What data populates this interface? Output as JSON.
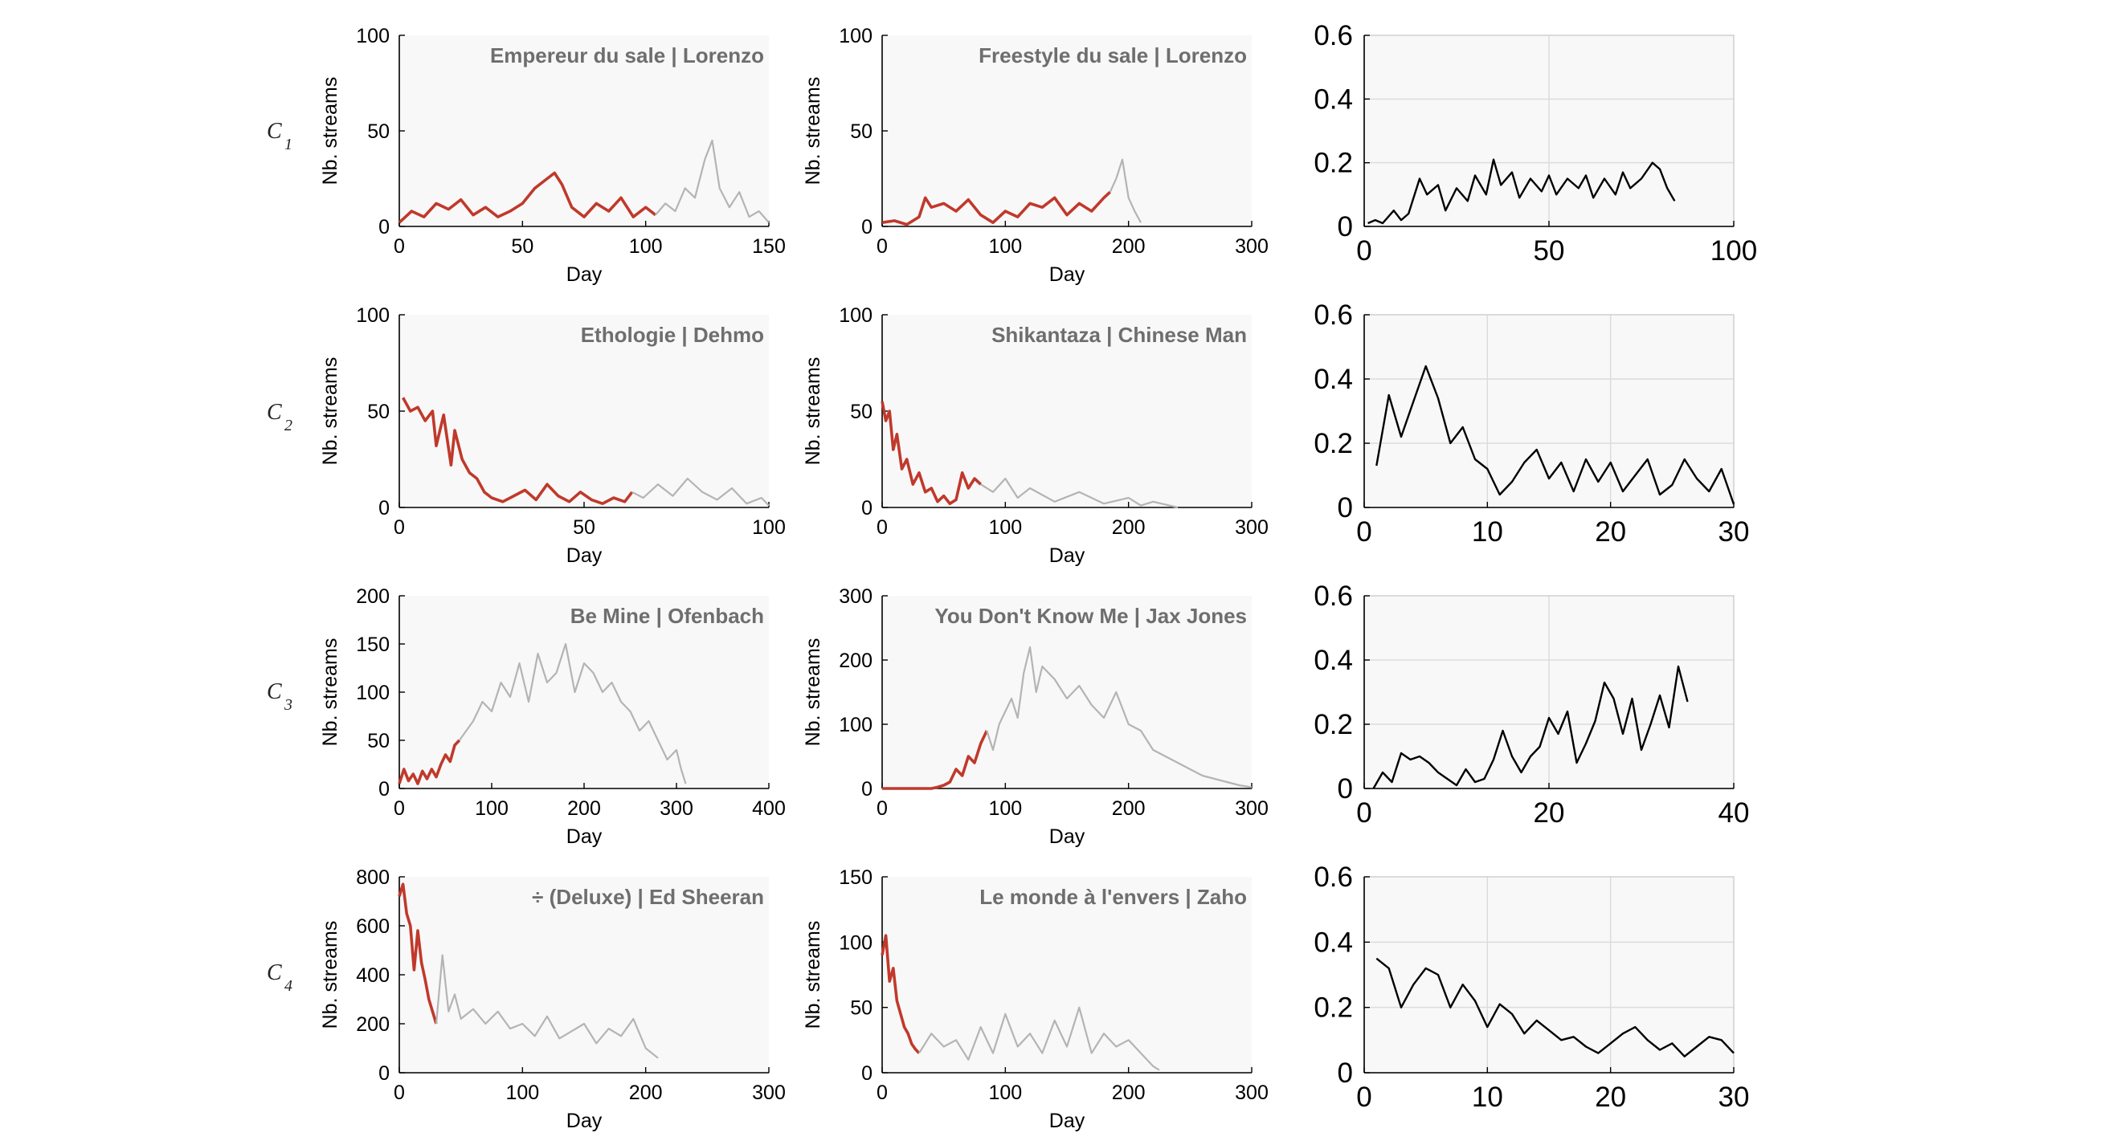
{
  "colors": {
    "early": "#c0392b",
    "late": "#b4b4b4",
    "curve": "#000000",
    "panel_bg": "#f8f8f8"
  },
  "labels": {
    "xlabel": "Day",
    "ylabel": "Nb. streams",
    "row_letter": "C"
  },
  "rows": [
    {
      "sub": "1"
    },
    {
      "sub": "2"
    },
    {
      "sub": "3"
    },
    {
      "sub": "4"
    }
  ],
  "chart_data": [
    {
      "type": "line",
      "row": 1,
      "title": "Empereur du sale | Lorenzo",
      "xlabel": "Day",
      "ylabel": "Nb. streams",
      "xlim": [
        0,
        150
      ],
      "ylim": [
        0,
        100
      ],
      "xticks": [
        0,
        50,
        100,
        150
      ],
      "yticks": [
        0,
        50,
        100
      ],
      "series": [
        {
          "x": [
            0,
            5,
            10,
            15,
            20,
            25,
            30,
            35,
            40,
            45,
            50,
            55,
            60,
            63,
            66,
            70,
            75,
            80,
            85,
            90,
            95,
            100,
            104
          ],
          "y": [
            2,
            8,
            5,
            12,
            9,
            14,
            6,
            10,
            5,
            8,
            12,
            20,
            25,
            28,
            22,
            10,
            5,
            12,
            8,
            15,
            5,
            10,
            6
          ]
        },
        {
          "x": [
            104,
            108,
            112,
            116,
            120,
            124,
            127,
            130,
            134,
            138,
            142,
            146,
            150
          ],
          "y": [
            6,
            12,
            8,
            20,
            15,
            35,
            45,
            20,
            10,
            18,
            5,
            8,
            2
          ]
        }
      ]
    },
    {
      "type": "line",
      "row": 1,
      "title": "Freestyle du sale | Lorenzo",
      "xlabel": "Day",
      "ylabel": "Nb. streams",
      "xlim": [
        0,
        300
      ],
      "ylim": [
        0,
        100
      ],
      "xticks": [
        0,
        100,
        200,
        300
      ],
      "yticks": [
        0,
        50,
        100
      ],
      "series": [
        {
          "x": [
            0,
            10,
            20,
            30,
            35,
            40,
            50,
            60,
            70,
            80,
            90,
            100,
            110,
            120,
            130,
            140,
            150,
            160,
            170,
            180,
            185
          ],
          "y": [
            2,
            3,
            1,
            5,
            15,
            10,
            12,
            8,
            14,
            6,
            2,
            8,
            5,
            12,
            10,
            15,
            6,
            12,
            8,
            15,
            18
          ]
        },
        {
          "x": [
            185,
            190,
            195,
            200,
            205,
            210
          ],
          "y": [
            18,
            25,
            35,
            15,
            8,
            2
          ]
        }
      ]
    },
    {
      "type": "line",
      "row": 1,
      "xlim": [
        0,
        100
      ],
      "ylim": [
        0,
        0.6
      ],
      "xticks": [
        0,
        50,
        100
      ],
      "yticks": [
        0,
        0.2,
        0.4,
        0.6
      ],
      "grid": true,
      "series": [
        {
          "x": [
            1,
            3,
            5,
            8,
            10,
            12,
            15,
            17,
            20,
            22,
            25,
            28,
            30,
            33,
            35,
            37,
            40,
            42,
            45,
            48,
            50,
            52,
            55,
            58,
            60,
            62,
            65,
            68,
            70,
            72,
            75,
            78,
            80,
            82,
            84
          ],
          "y": [
            0.01,
            0.02,
            0.01,
            0.05,
            0.02,
            0.04,
            0.15,
            0.1,
            0.13,
            0.05,
            0.12,
            0.08,
            0.16,
            0.1,
            0.21,
            0.13,
            0.17,
            0.09,
            0.15,
            0.11,
            0.16,
            0.1,
            0.15,
            0.12,
            0.16,
            0.09,
            0.15,
            0.1,
            0.17,
            0.12,
            0.15,
            0.2,
            0.18,
            0.12,
            0.08
          ]
        }
      ]
    },
    {
      "type": "line",
      "row": 2,
      "title": "Ethologie | Dehmo",
      "xlabel": "Day",
      "ylabel": "Nb. streams",
      "xlim": [
        0,
        100
      ],
      "ylim": [
        0,
        100
      ],
      "xticks": [
        0,
        50,
        100
      ],
      "yticks": [
        0,
        50,
        100
      ],
      "series": [
        {
          "x": [
            1,
            3,
            5,
            7,
            9,
            10,
            12,
            14,
            15,
            17,
            19,
            21,
            23,
            25,
            28,
            31,
            34,
            37,
            40,
            43,
            46,
            49,
            52,
            55,
            58,
            61,
            63
          ],
          "y": [
            57,
            50,
            52,
            45,
            50,
            32,
            48,
            22,
            40,
            25,
            18,
            15,
            8,
            5,
            3,
            6,
            9,
            4,
            12,
            6,
            3,
            8,
            4,
            2,
            5,
            3,
            8
          ]
        },
        {
          "x": [
            63,
            66,
            70,
            74,
            78,
            82,
            86,
            90,
            94,
            98,
            100
          ],
          "y": [
            8,
            5,
            12,
            6,
            15,
            8,
            4,
            10,
            2,
            5,
            1
          ]
        }
      ]
    },
    {
      "type": "line",
      "row": 2,
      "title": "Shikantaza | Chinese Man",
      "xlabel": "Day",
      "ylabel": "Nb. streams",
      "xlim": [
        0,
        300
      ],
      "ylim": [
        0,
        100
      ],
      "xticks": [
        0,
        100,
        200,
        300
      ],
      "yticks": [
        0,
        50,
        100
      ],
      "series": [
        {
          "x": [
            0,
            3,
            6,
            9,
            12,
            16,
            20,
            25,
            30,
            35,
            40,
            45,
            50,
            55,
            60,
            65,
            70,
            75,
            80
          ],
          "y": [
            55,
            45,
            50,
            30,
            38,
            20,
            25,
            12,
            18,
            8,
            10,
            3,
            6,
            2,
            4,
            18,
            10,
            15,
            12
          ]
        },
        {
          "x": [
            80,
            90,
            100,
            110,
            120,
            140,
            160,
            180,
            200,
            210,
            220,
            240
          ],
          "y": [
            12,
            8,
            15,
            5,
            10,
            3,
            8,
            2,
            5,
            1,
            3,
            0
          ]
        }
      ]
    },
    {
      "type": "line",
      "row": 2,
      "xlim": [
        0,
        30
      ],
      "ylim": [
        0,
        0.6
      ],
      "xticks": [
        0,
        10,
        20,
        30
      ],
      "yticks": [
        0,
        0.2,
        0.4,
        0.6
      ],
      "grid": true,
      "series": [
        {
          "x": [
            1,
            2,
            3,
            4,
            5,
            6,
            7,
            8,
            9,
            10,
            11,
            12,
            13,
            14,
            15,
            16,
            17,
            18,
            19,
            20,
            21,
            22,
            23,
            24,
            25,
            26,
            27,
            28,
            29,
            30
          ],
          "y": [
            0.13,
            0.35,
            0.22,
            0.33,
            0.44,
            0.34,
            0.2,
            0.25,
            0.15,
            0.12,
            0.04,
            0.08,
            0.14,
            0.18,
            0.09,
            0.14,
            0.05,
            0.15,
            0.08,
            0.14,
            0.05,
            0.1,
            0.15,
            0.04,
            0.07,
            0.15,
            0.09,
            0.05,
            0.12,
            0.01
          ]
        }
      ]
    },
    {
      "type": "line",
      "row": 3,
      "title": "Be Mine | Ofenbach",
      "xlabel": "Day",
      "ylabel": "Nb. streams",
      "xlim": [
        0,
        400
      ],
      "ylim": [
        0,
        200
      ],
      "xticks": [
        0,
        100,
        200,
        300,
        400
      ],
      "yticks": [
        0,
        50,
        100,
        150,
        200
      ],
      "series": [
        {
          "x": [
            0,
            5,
            10,
            15,
            20,
            25,
            30,
            35,
            40,
            45,
            50,
            55,
            60,
            65
          ],
          "y": [
            5,
            20,
            8,
            15,
            5,
            18,
            10,
            20,
            12,
            25,
            35,
            28,
            45,
            50
          ]
        },
        {
          "x": [
            65,
            80,
            90,
            100,
            110,
            120,
            130,
            140,
            150,
            160,
            170,
            180,
            190,
            200,
            210,
            220,
            230,
            240,
            250,
            260,
            270,
            280,
            290,
            300,
            305,
            310
          ],
          "y": [
            50,
            70,
            90,
            80,
            110,
            95,
            130,
            90,
            140,
            110,
            120,
            150,
            100,
            130,
            120,
            100,
            110,
            90,
            80,
            60,
            70,
            50,
            30,
            40,
            20,
            5
          ]
        }
      ]
    },
    {
      "type": "line",
      "row": 3,
      "title": "You Don't Know Me | Jax Jones",
      "xlabel": "Day",
      "ylabel": "Nb. streams",
      "xlim": [
        0,
        300
      ],
      "ylim": [
        0,
        300
      ],
      "xticks": [
        0,
        100,
        200,
        300
      ],
      "yticks": [
        0,
        100,
        200,
        300
      ],
      "series": [
        {
          "x": [
            0,
            10,
            20,
            30,
            40,
            45,
            50,
            55,
            60,
            65,
            70,
            75,
            80,
            85
          ],
          "y": [
            0,
            0,
            0,
            0,
            0,
            2,
            5,
            10,
            30,
            20,
            50,
            40,
            70,
            90
          ]
        },
        {
          "x": [
            85,
            90,
            95,
            100,
            105,
            110,
            115,
            120,
            125,
            130,
            140,
            150,
            160,
            170,
            180,
            190,
            200,
            210,
            220,
            230,
            240,
            250,
            260,
            270,
            280,
            290,
            300
          ],
          "y": [
            90,
            60,
            100,
            120,
            140,
            110,
            180,
            220,
            150,
            190,
            170,
            140,
            160,
            130,
            110,
            150,
            100,
            90,
            60,
            50,
            40,
            30,
            20,
            15,
            10,
            5,
            2
          ]
        }
      ]
    },
    {
      "type": "line",
      "row": 3,
      "xlim": [
        0,
        40
      ],
      "ylim": [
        0,
        0.6
      ],
      "xticks": [
        0,
        20,
        40
      ],
      "yticks": [
        0,
        0.2,
        0.4,
        0.6
      ],
      "grid": true,
      "series": [
        {
          "x": [
            1,
            2,
            3,
            4,
            5,
            6,
            7,
            8,
            9,
            10,
            11,
            12,
            13,
            14,
            15,
            16,
            17,
            18,
            19,
            20,
            21,
            22,
            23,
            24,
            25,
            26,
            27,
            28,
            29,
            30,
            31,
            32,
            33,
            34,
            35
          ],
          "y": [
            0,
            0.05,
            0.02,
            0.11,
            0.09,
            0.1,
            0.08,
            0.05,
            0.03,
            0.01,
            0.06,
            0.02,
            0.03,
            0.09,
            0.18,
            0.1,
            0.05,
            0.1,
            0.13,
            0.22,
            0.17,
            0.24,
            0.08,
            0.14,
            0.21,
            0.33,
            0.28,
            0.17,
            0.28,
            0.12,
            0.2,
            0.29,
            0.19,
            0.38,
            0.27
          ]
        }
      ]
    },
    {
      "type": "line",
      "row": 4,
      "title": "÷ (Deluxe) | Ed Sheeran",
      "xlabel": "Day",
      "ylabel": "Nb. streams",
      "xlim": [
        0,
        300
      ],
      "ylim": [
        0,
        800
      ],
      "xticks": [
        0,
        100,
        200,
        300
      ],
      "yticks": [
        0,
        200,
        400,
        600,
        800
      ],
      "series": [
        {
          "x": [
            0,
            3,
            6,
            9,
            12,
            15,
            18,
            21,
            24,
            27,
            30
          ],
          "y": [
            720,
            770,
            650,
            600,
            420,
            580,
            450,
            380,
            300,
            250,
            200
          ]
        },
        {
          "x": [
            30,
            35,
            40,
            45,
            50,
            60,
            70,
            80,
            90,
            100,
            110,
            120,
            130,
            140,
            150,
            160,
            170,
            180,
            190,
            200,
            210
          ],
          "y": [
            200,
            480,
            250,
            320,
            220,
            260,
            200,
            250,
            180,
            200,
            150,
            230,
            140,
            170,
            200,
            120,
            180,
            150,
            220,
            100,
            60
          ]
        }
      ]
    },
    {
      "type": "line",
      "row": 4,
      "title": "Le monde à l'envers | Zaho",
      "xlabel": "Day",
      "ylabel": "Nb. streams",
      "xlim": [
        0,
        300
      ],
      "ylim": [
        0,
        150
      ],
      "xticks": [
        0,
        100,
        200,
        300
      ],
      "yticks": [
        0,
        50,
        100,
        150
      ],
      "series": [
        {
          "x": [
            0,
            3,
            6,
            9,
            12,
            15,
            18,
            21,
            24,
            27,
            30
          ],
          "y": [
            90,
            105,
            70,
            80,
            55,
            45,
            35,
            30,
            22,
            18,
            15
          ]
        },
        {
          "x": [
            30,
            40,
            50,
            60,
            70,
            80,
            90,
            100,
            110,
            120,
            130,
            140,
            150,
            160,
            170,
            180,
            190,
            200,
            210,
            220,
            225
          ],
          "y": [
            15,
            30,
            20,
            25,
            10,
            35,
            15,
            45,
            20,
            30,
            15,
            40,
            20,
            50,
            15,
            30,
            20,
            25,
            15,
            5,
            2
          ]
        }
      ]
    },
    {
      "type": "line",
      "row": 4,
      "xlim": [
        0,
        30
      ],
      "ylim": [
        0,
        0.6
      ],
      "xticks": [
        0,
        10,
        20,
        30
      ],
      "yticks": [
        0,
        0.2,
        0.4,
        0.6
      ],
      "grid": true,
      "series": [
        {
          "x": [
            1,
            2,
            3,
            4,
            5,
            6,
            7,
            8,
            9,
            10,
            11,
            12,
            13,
            14,
            15,
            16,
            17,
            18,
            19,
            20,
            21,
            22,
            23,
            24,
            25,
            26,
            27,
            28,
            29,
            30
          ],
          "y": [
            0.35,
            0.32,
            0.2,
            0.27,
            0.32,
            0.3,
            0.2,
            0.27,
            0.22,
            0.14,
            0.21,
            0.18,
            0.12,
            0.16,
            0.13,
            0.1,
            0.11,
            0.08,
            0.06,
            0.09,
            0.12,
            0.14,
            0.1,
            0.07,
            0.09,
            0.05,
            0.08,
            0.11,
            0.1,
            0.06
          ]
        }
      ]
    }
  ]
}
